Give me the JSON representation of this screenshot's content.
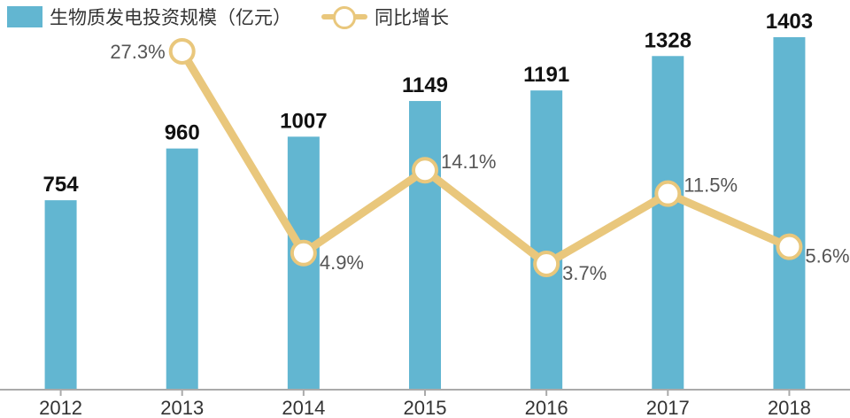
{
  "legend": {
    "bar_label": "生物质发电投资规模（亿元）",
    "line_label": "同比增长"
  },
  "colors": {
    "bar": "#62b6d1",
    "line": "#e9c77c",
    "axis": "#aaaaaa",
    "value_text": "#111111",
    "pct_text": "#555555"
  },
  "chart_data": {
    "type": "bar",
    "categories": [
      "2012",
      "2013",
      "2014",
      "2015",
      "2016",
      "2017",
      "2018"
    ],
    "series": [
      {
        "name": "生物质发电投资规模（亿元）",
        "type": "bar",
        "values": [
          754,
          960,
          1007,
          1149,
          1191,
          1328,
          1403
        ],
        "labels": [
          "754",
          "960",
          "1007",
          "1149",
          "1191",
          "1328",
          "1403"
        ]
      },
      {
        "name": "同比增长",
        "type": "line",
        "values": [
          null,
          27.3,
          4.9,
          14.1,
          3.7,
          11.5,
          5.6
        ],
        "labels": [
          "",
          "27.3%",
          "4.9%",
          "14.1%",
          "3.7%",
          "11.5%",
          "5.6%"
        ]
      }
    ],
    "title": "",
    "xlabel": "",
    "ylabel": "",
    "grid": false
  }
}
